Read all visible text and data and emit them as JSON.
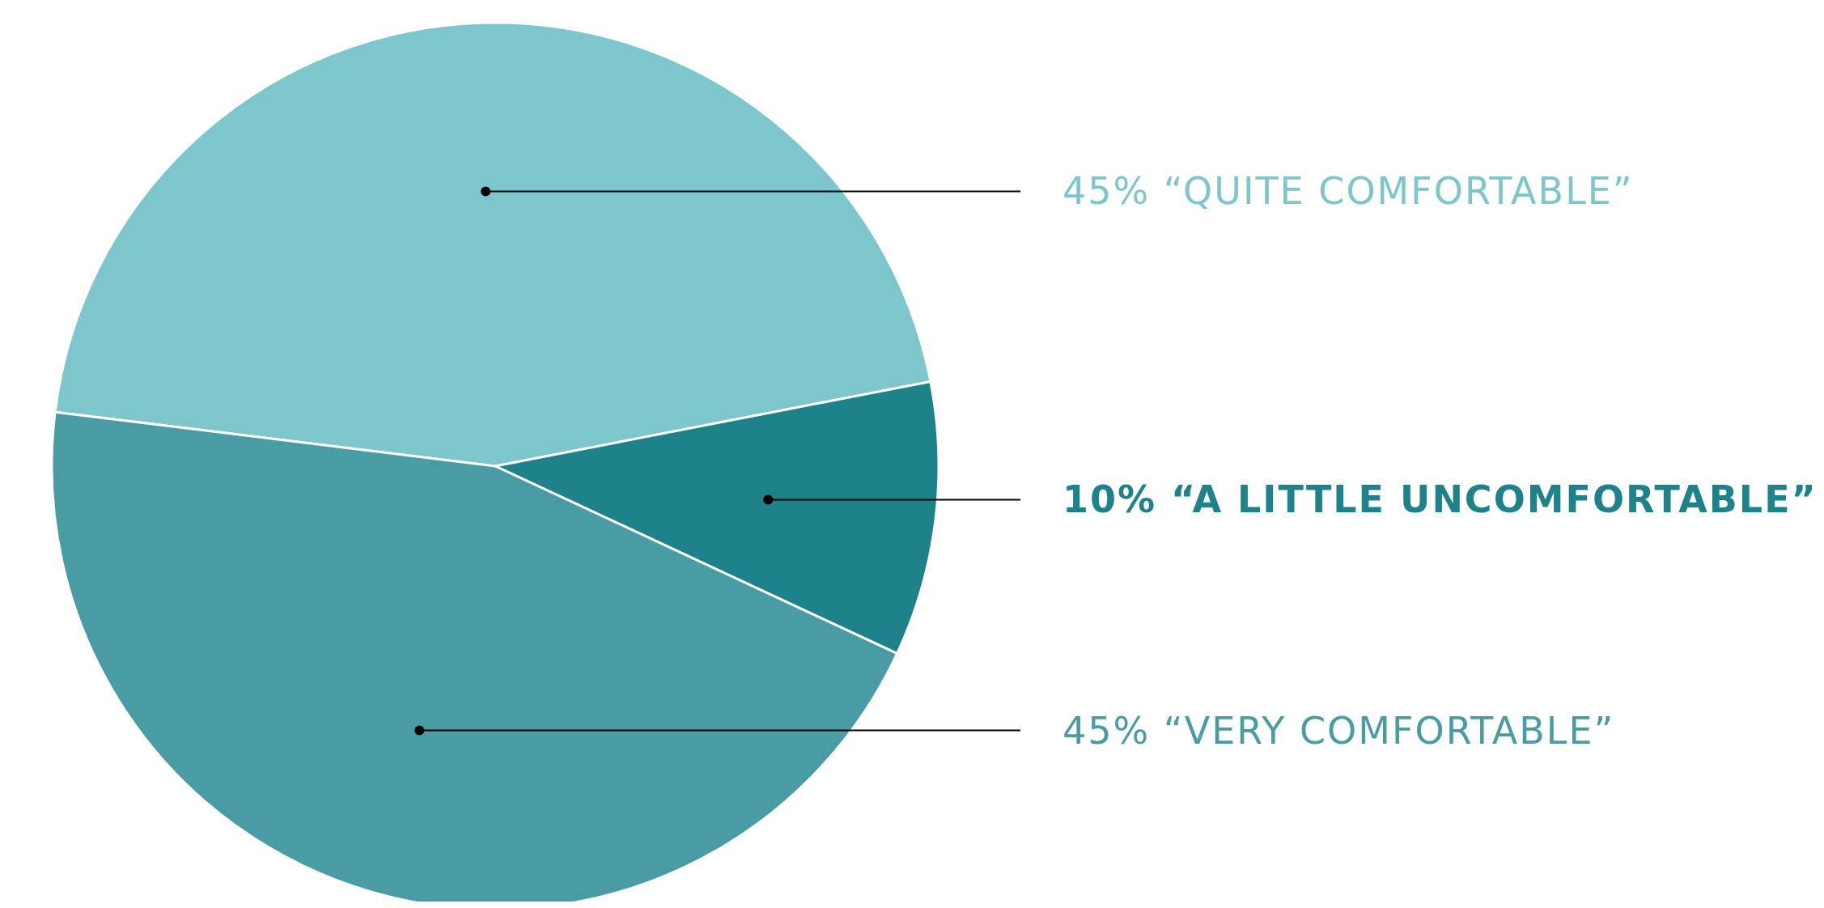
{
  "chart_data": {
    "type": "pie",
    "categories": [
      "45% “QUITE COMFORTABLE”",
      "10% “A LITTLE UNCOMFORTABLE”",
      "45% “VERY COMFORTABLE”"
    ],
    "values": [
      45,
      10,
      45
    ],
    "colors": [
      "#7cc6cc",
      "#1d828a",
      "#4a9ca4"
    ]
  }
}
